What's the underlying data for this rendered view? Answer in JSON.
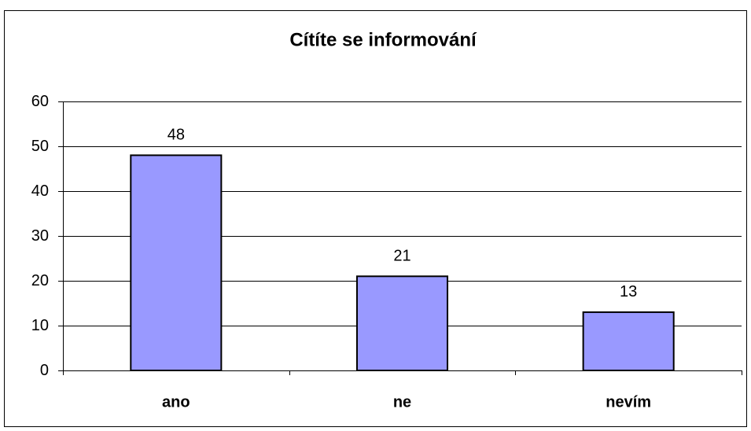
{
  "chart_data": {
    "type": "bar",
    "title": "Cítíte se informování",
    "categories": [
      "ano",
      "ne",
      "nevím"
    ],
    "values": [
      48,
      21,
      13
    ],
    "color": "#9999ff",
    "ylim": [
      0,
      60
    ],
    "yticks": [
      0,
      10,
      20,
      30,
      40,
      50,
      60
    ],
    "grid": true
  }
}
